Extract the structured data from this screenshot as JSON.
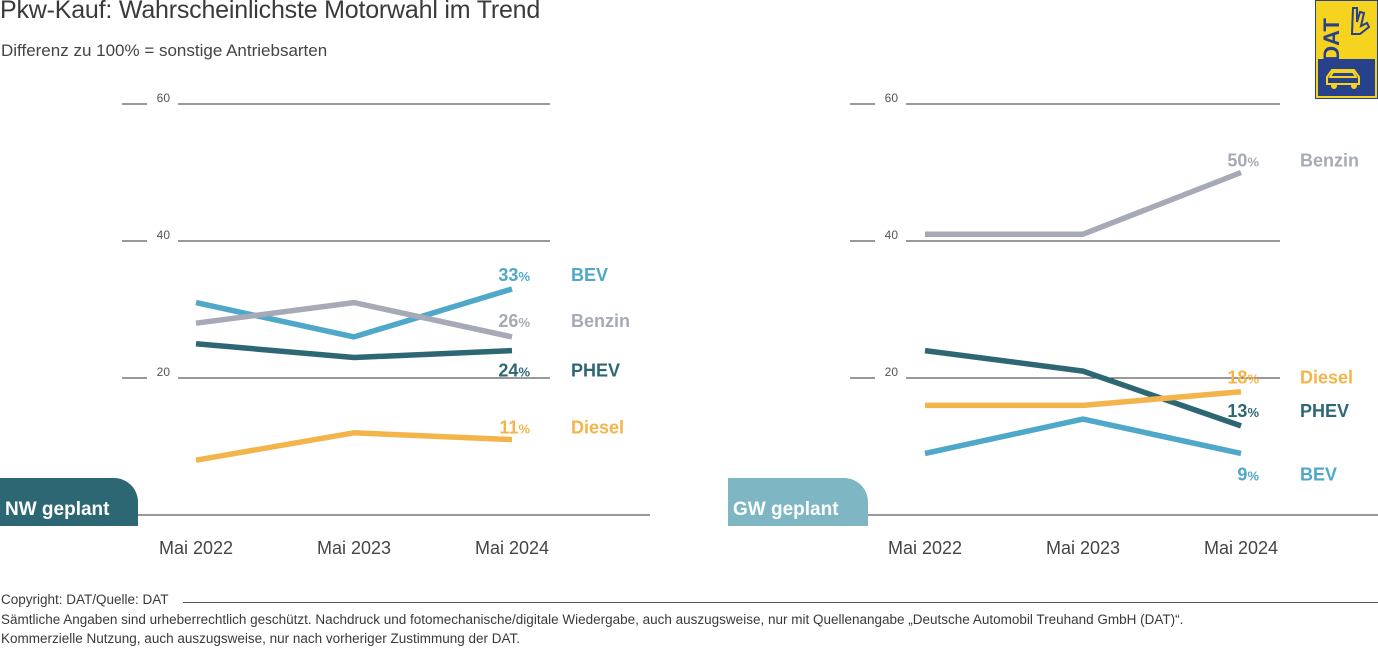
{
  "title": "Pkw-Kauf: Wahrscheinlichste Motorwahl im Trend",
  "subtitle": "Differenz zu 100% = sonstige Antriebsarten",
  "logo_text": "DAT",
  "colors": {
    "BEV": "#4fa7c9",
    "Benzin": "#a5aab6",
    "PHEV": "#2e6774",
    "Diesel": "#f3b54b",
    "nw_tab": "#2e6774",
    "gw_tab": "#7fb6c4",
    "logo_yellow": "#f5d31e",
    "logo_blue": "#27418c"
  },
  "copyright": "Copyright: DAT/Quelle: DAT",
  "legal": [
    "Sämtliche Angaben sind urheberrechtlich geschützt. Nachdruck und fotomechanische/digitale Wiedergabe, auch auszugsweise, nur mit Quellenangabe „Deutsche Automobil Treuhand GmbH (DAT)“.",
    "Kommerzielle Nutzung, auch auszugsweise, nur nach vorheriger Zustimmung der DAT."
  ],
  "chart_data": [
    {
      "type": "line",
      "panel_label": "NW geplant",
      "categories": [
        "Mai 2022",
        "Mai 2023",
        "Mai 2024"
      ],
      "ylim": [
        0,
        60
      ],
      "yticks": [
        20,
        40,
        60
      ],
      "series": [
        {
          "name": "BEV",
          "values": [
            31,
            26,
            33
          ],
          "end_label": "33"
        },
        {
          "name": "Benzin",
          "values": [
            28,
            31,
            26
          ],
          "end_label": "26"
        },
        {
          "name": "PHEV",
          "values": [
            25,
            23,
            24
          ],
          "end_label": "24"
        },
        {
          "name": "Diesel",
          "values": [
            8,
            12,
            11
          ],
          "end_label": "11"
        }
      ]
    },
    {
      "type": "line",
      "panel_label": "GW geplant",
      "categories": [
        "Mai 2022",
        "Mai 2023",
        "Mai 2024"
      ],
      "ylim": [
        0,
        60
      ],
      "yticks": [
        20,
        40,
        60
      ],
      "series": [
        {
          "name": "Benzin",
          "values": [
            41,
            41,
            50
          ],
          "end_label": "50"
        },
        {
          "name": "PHEV",
          "values": [
            24,
            21,
            13
          ],
          "end_label": "13"
        },
        {
          "name": "Diesel",
          "values": [
            16,
            16,
            18
          ],
          "end_label": "18"
        },
        {
          "name": "BEV",
          "values": [
            9,
            14,
            9
          ],
          "end_label": "9"
        }
      ]
    }
  ],
  "pct_sign": "%"
}
